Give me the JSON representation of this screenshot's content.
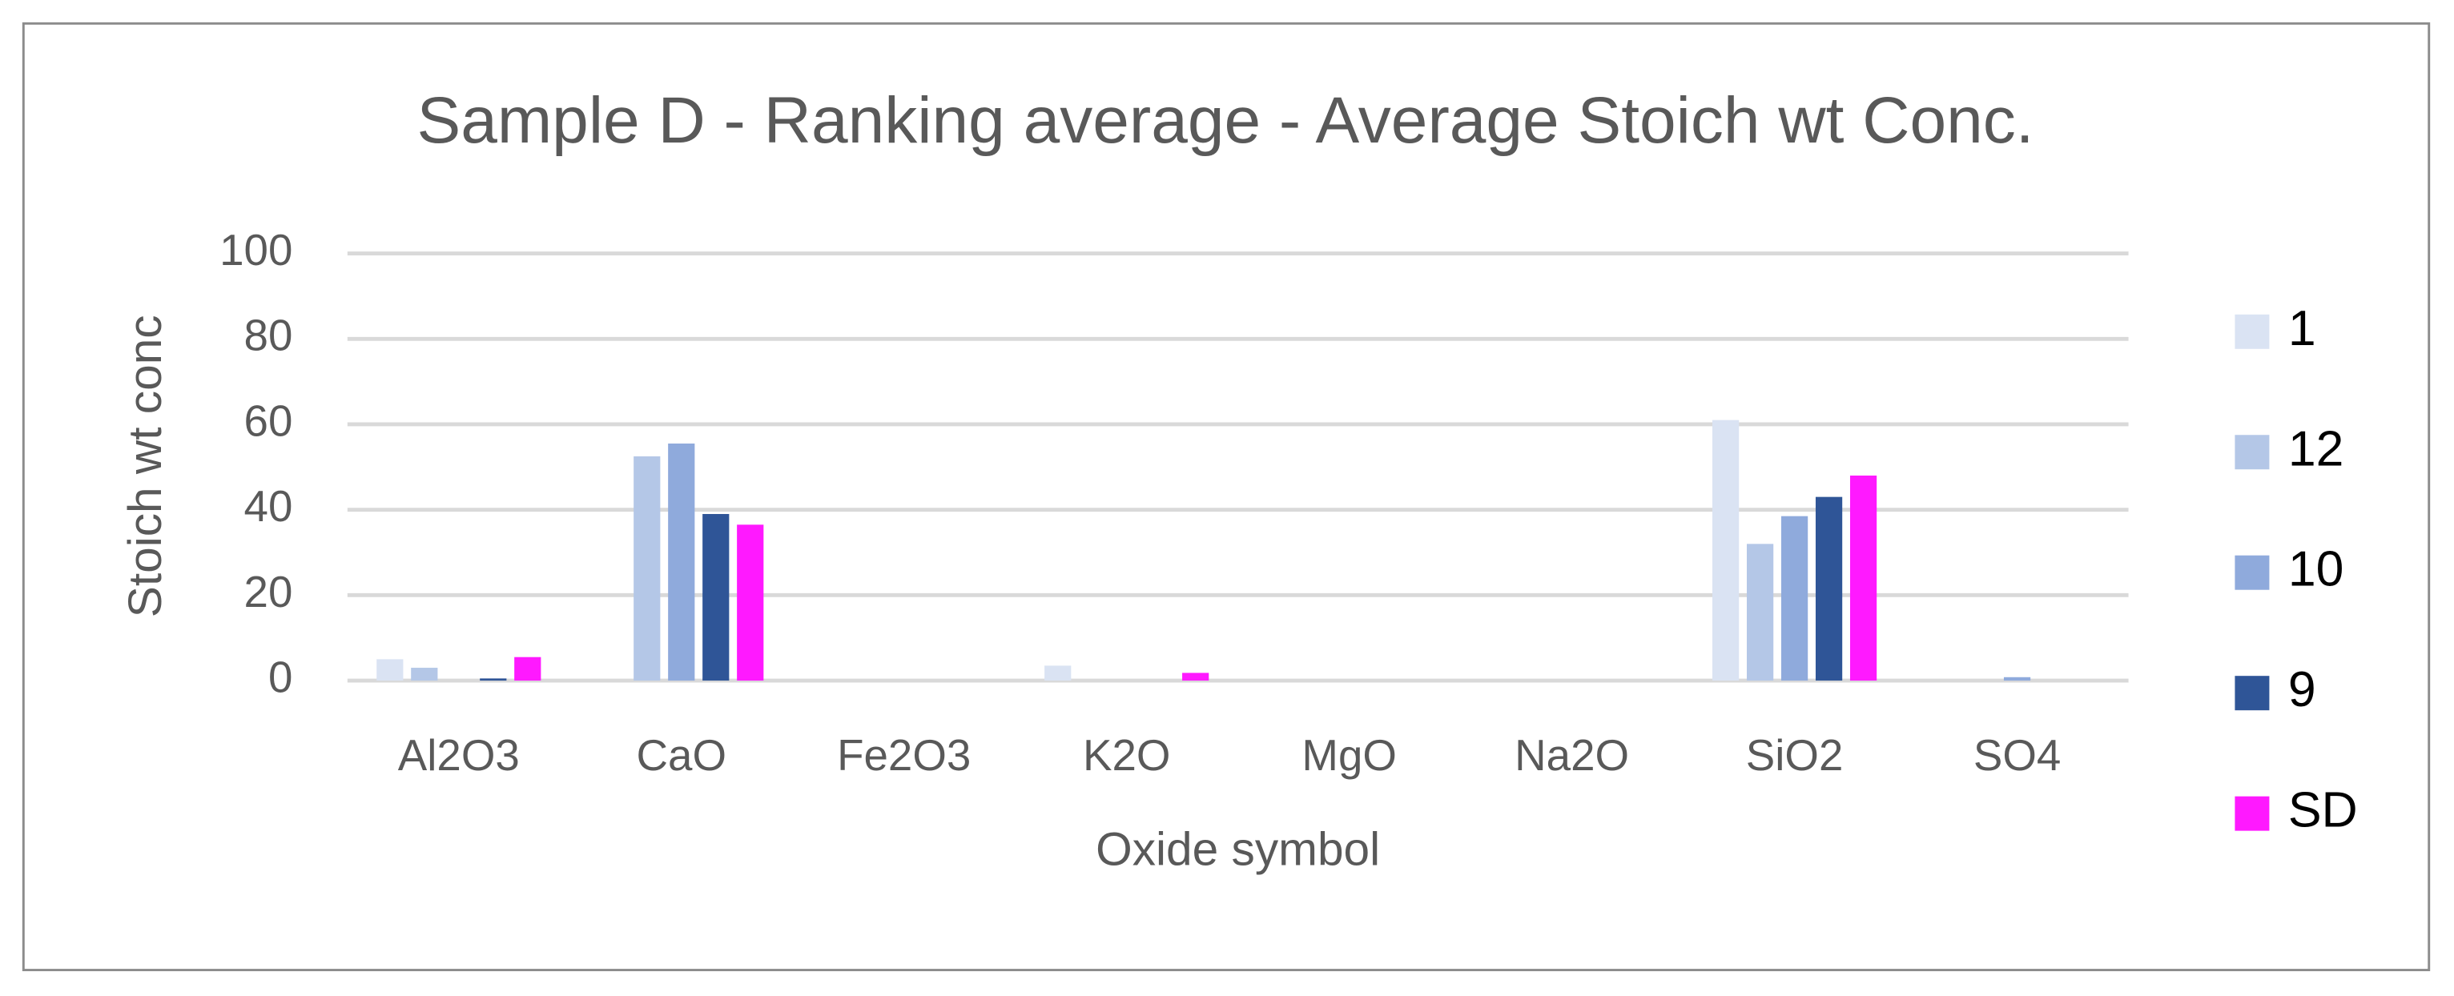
{
  "chart_data": {
    "type": "bar",
    "title": "Sample D - Ranking average - Average Stoich wt Conc.",
    "x_label": "Oxide symbol",
    "y_label": "Stoich wt conc",
    "categories": [
      "Al2O3",
      "CaO",
      "Fe2O3",
      "K2O",
      "MgO",
      "Na2O",
      "SiO2",
      "SO4"
    ],
    "series": [
      {
        "name": "1",
        "color": "#dae3f3",
        "values": [
          5,
          0,
          0,
          3.5,
          0,
          0,
          61,
          0
        ]
      },
      {
        "name": "12",
        "color": "#b4c7e7",
        "values": [
          3,
          52.5,
          0,
          0,
          0,
          0,
          32,
          0
        ]
      },
      {
        "name": "10",
        "color": "#8faadc",
        "values": [
          0,
          55.5,
          0,
          0,
          0,
          0,
          38.5,
          0.8
        ]
      },
      {
        "name": "9",
        "color": "#2f5597",
        "values": [
          0.5,
          39,
          0,
          0,
          0,
          0,
          43,
          0
        ]
      },
      {
        "name": "SD",
        "color": "#ff19ff",
        "values": [
          5.5,
          36.5,
          0,
          1.8,
          0,
          0,
          48,
          0
        ]
      }
    ],
    "ylim": [
      0,
      100
    ],
    "yticks": [
      0,
      20,
      40,
      60,
      80,
      100
    ],
    "grid": true,
    "legend": "right"
  }
}
